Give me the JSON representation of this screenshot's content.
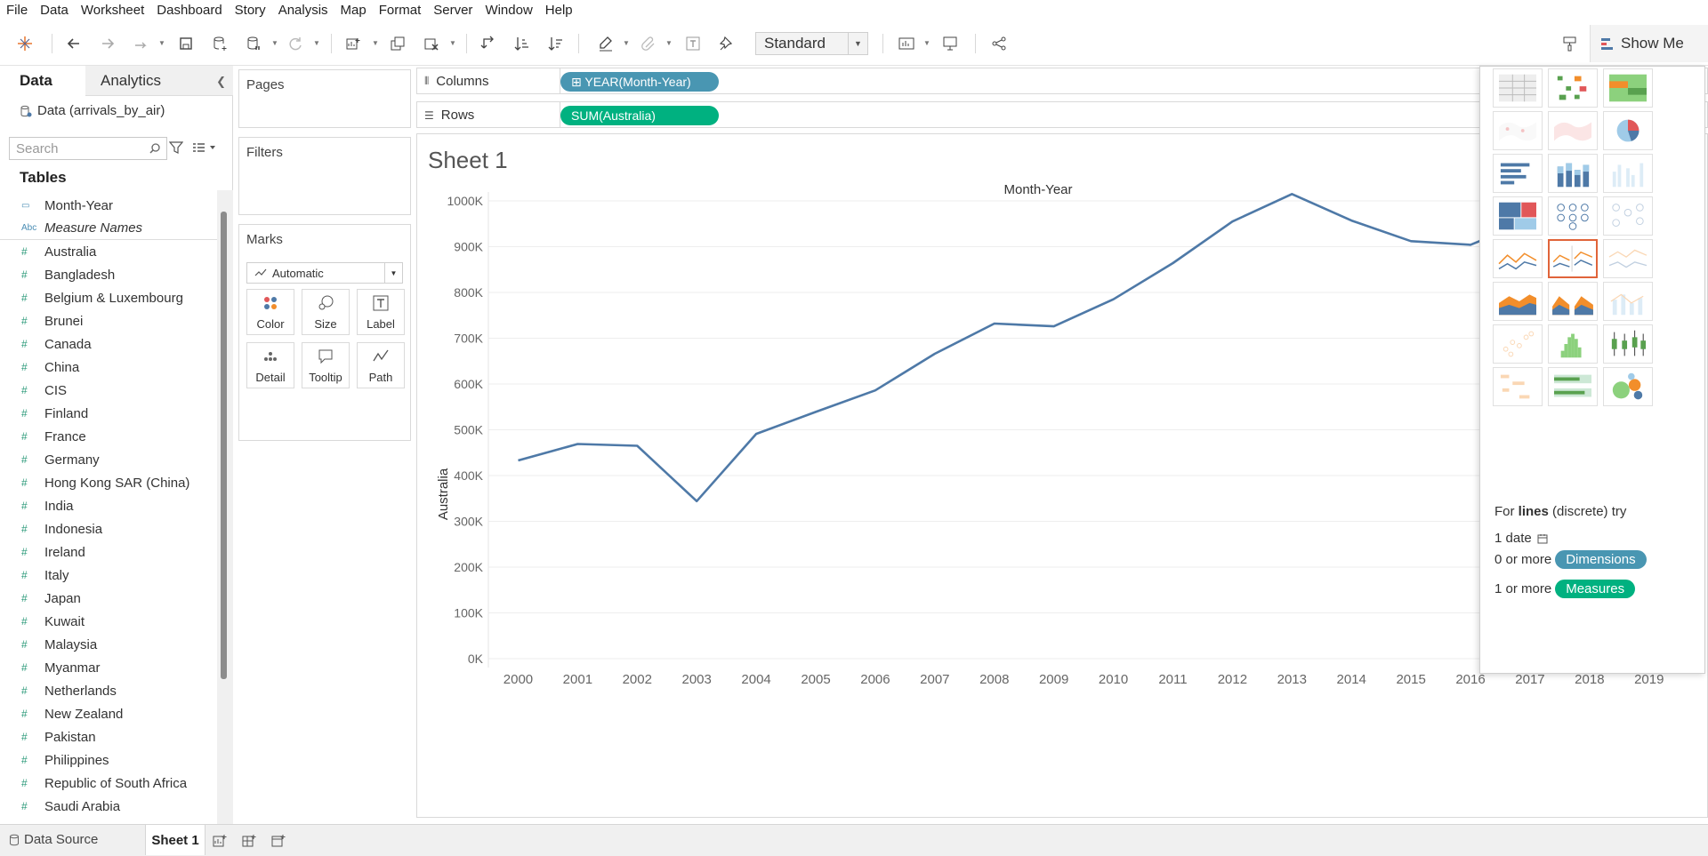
{
  "menu": [
    "File",
    "Data",
    "Worksheet",
    "Dashboard",
    "Story",
    "Analysis",
    "Map",
    "Format",
    "Server",
    "Window",
    "Help"
  ],
  "toolbar": {
    "fit_value": "Standard",
    "show_me_label": "Show Me",
    "icons": [
      "tableau-logo-icon",
      "undo-icon",
      "redo-icon",
      "replay-icon",
      "save-icon",
      "new-datasource-icon",
      "pause-updates-icon",
      "refresh-icon",
      "new-worksheet-icon",
      "duplicate-icon",
      "clear-icon",
      "swap-icon",
      "sort-ascending-icon",
      "sort-descending-icon",
      "highlight-icon",
      "group-icon",
      "label-icon",
      "pin-icon",
      "fit-icon",
      "presentation-icon",
      "share-icon",
      "paintbrush-icon"
    ]
  },
  "data_pane": {
    "tab_data": "Data",
    "tab_analytics": "Analytics",
    "datasource": "Data (arrivals_by_air)",
    "search_placeholder": "Search",
    "tables_heading": "Tables",
    "fields": [
      {
        "name": "Month-Year",
        "type": "date",
        "glyph": "▭"
      },
      {
        "name": "Measure Names",
        "type": "abc",
        "glyph": "Abc"
      },
      {
        "name": "Australia",
        "type": "measure",
        "glyph": "#"
      },
      {
        "name": "Bangladesh",
        "type": "measure",
        "glyph": "#"
      },
      {
        "name": "Belgium & Luxembourg",
        "type": "measure",
        "glyph": "#"
      },
      {
        "name": "Brunei",
        "type": "measure",
        "glyph": "#"
      },
      {
        "name": "Canada",
        "type": "measure",
        "glyph": "#"
      },
      {
        "name": "China",
        "type": "measure",
        "glyph": "#"
      },
      {
        "name": "CIS",
        "type": "measure",
        "glyph": "#"
      },
      {
        "name": "Finland",
        "type": "measure",
        "glyph": "#"
      },
      {
        "name": "France",
        "type": "measure",
        "glyph": "#"
      },
      {
        "name": "Germany",
        "type": "measure",
        "glyph": "#"
      },
      {
        "name": "Hong Kong SAR (China)",
        "type": "measure",
        "glyph": "#"
      },
      {
        "name": "India",
        "type": "measure",
        "glyph": "#"
      },
      {
        "name": "Indonesia",
        "type": "measure",
        "glyph": "#"
      },
      {
        "name": "Ireland",
        "type": "measure",
        "glyph": "#"
      },
      {
        "name": "Italy",
        "type": "measure",
        "glyph": "#"
      },
      {
        "name": "Japan",
        "type": "measure",
        "glyph": "#"
      },
      {
        "name": "Kuwait",
        "type": "measure",
        "glyph": "#"
      },
      {
        "name": "Malaysia",
        "type": "measure",
        "glyph": "#"
      },
      {
        "name": "Myanmar",
        "type": "measure",
        "glyph": "#"
      },
      {
        "name": "Netherlands",
        "type": "measure",
        "glyph": "#"
      },
      {
        "name": "New Zealand",
        "type": "measure",
        "glyph": "#"
      },
      {
        "name": "Pakistan",
        "type": "measure",
        "glyph": "#"
      },
      {
        "name": "Philippines",
        "type": "measure",
        "glyph": "#"
      },
      {
        "name": "Republic of South Africa",
        "type": "measure",
        "glyph": "#"
      },
      {
        "name": "Saudi Arabia",
        "type": "measure",
        "glyph": "#"
      }
    ]
  },
  "cards": {
    "pages": "Pages",
    "filters": "Filters",
    "marks": "Marks",
    "mark_type": "Automatic",
    "mark_buttons": [
      "Color",
      "Size",
      "Label",
      "Detail",
      "Tooltip",
      "Path"
    ]
  },
  "shelves": {
    "columns_label": "Columns",
    "rows_label": "Rows",
    "columns_pill": "⊞ YEAR(Month-Year)",
    "rows_pill": "SUM(Australia)"
  },
  "sheet": {
    "title": "Sheet 1"
  },
  "chart_data": {
    "type": "line",
    "title": "Month-Year",
    "xlabel": "Month-Year",
    "ylabel": "Australia",
    "x": [
      "2000",
      "2001",
      "2002",
      "2003",
      "2004",
      "2005",
      "2006",
      "2007",
      "2008",
      "2009",
      "2010",
      "2011",
      "2012",
      "2013",
      "2014",
      "2015",
      "2016",
      "2017",
      "2018",
      "2019"
    ],
    "y_ticks": [
      "0K",
      "100K",
      "200K",
      "300K",
      "400K",
      "500K",
      "600K",
      "700K",
      "800K",
      "900K",
      "1000K"
    ],
    "ylim": [
      0,
      1000000
    ],
    "series": [
      {
        "values": [
          433000,
          469000,
          465000,
          344000,
          491000,
          539000,
          586000,
          666000,
          732000,
          726000,
          785000,
          864000,
          955000,
          1015000,
          957000,
          912000,
          904000,
          957000,
          985000,
          null
        ]
      }
    ],
    "line_color": "#4e79a7",
    "grid": true
  },
  "show_me": {
    "hint_prefix": "For ",
    "hint_bold": "lines",
    "hint_suffix": " (discrete) try",
    "req_date": "1 date",
    "req_dims_prefix": "0 or more",
    "req_dims_pill": "Dimensions",
    "req_meas_prefix": "1 or more",
    "req_meas_pill": "Measures",
    "dims_color": "#4996b2",
    "meas_color": "#00b180"
  },
  "bottom": {
    "datasource_tab": "Data Source",
    "sheet_tab": "Sheet 1"
  }
}
